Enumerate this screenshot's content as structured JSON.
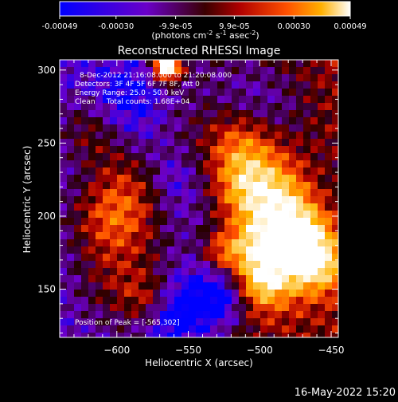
{
  "colorbar": {
    "tick_labels": [
      "-0.00049",
      "-0.00030",
      "-9.9e-05",
      "9.9e-05",
      "0.00030",
      "0.00049"
    ],
    "tick_values": [
      -0.00049,
      -0.0003,
      -9.9e-05,
      9.9e-05,
      0.0003,
      0.00049
    ],
    "range": [
      -0.00049,
      0.00049
    ],
    "unit_prefix": "(photons cm",
    "unit_exp1": "-2",
    "unit_mid": " s",
    "unit_exp2": "-1",
    "unit_mid2": " asec",
    "unit_exp3": "-2",
    "unit_suffix": ")",
    "gradient_stops": [
      "#0000ff",
      "#6a00c8",
      "#3a0000",
      "#b00000",
      "#ff5000",
      "#ffb000",
      "#ffffff"
    ]
  },
  "chart_data": {
    "type": "heatmap",
    "title": "Reconstructed RHESSI Image",
    "xlabel": "Heliocentric X (arcsec)",
    "ylabel": "Heliocentric Y (arcsec)",
    "xlim": [
      -640,
      -445
    ],
    "ylim": [
      117,
      307
    ],
    "x_ticks": [
      -600,
      -550,
      -500,
      -450
    ],
    "y_ticks": [
      150,
      200,
      250,
      300
    ],
    "x_tick_labels": [
      "−600",
      "−550",
      "−500",
      "−450"
    ],
    "y_tick_labels": [
      "150",
      "200",
      "250",
      "300"
    ],
    "peak_position": [
      -565,
      302
    ],
    "annotations": [
      "8-Dec-2012 21:16:08.000 to 21:20:08.000",
      "Detectors: 3F 4F 5F 6F 7F 8F, Att 0",
      "Energy Range: 25.0 - 50.0 keV",
      "Clean     Total counts: 1.68E+04"
    ],
    "peak_label": "Position of Peak = [-565,302]"
  },
  "footer": {
    "timestamp": "16-May-2022 15:20"
  }
}
